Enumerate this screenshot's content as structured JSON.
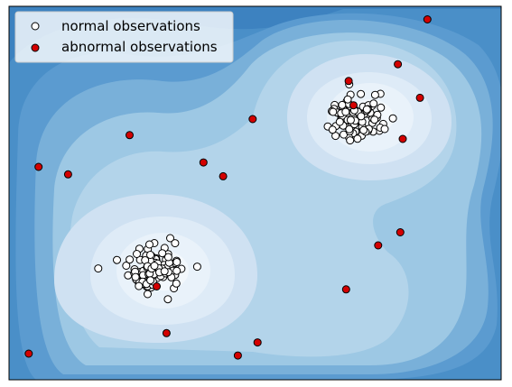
{
  "chart_data": {
    "type": "scatter",
    "title": "",
    "xlabel": "",
    "ylabel": "",
    "xlim": [
      -5,
      5
    ],
    "ylim": [
      -5,
      5
    ],
    "axes_ticks_visible": false,
    "grid": false,
    "background": "filled contour of outlier score (Blues colormap)",
    "legend": {
      "placement": "top-left",
      "entries": [
        {
          "label": "normal observations",
          "marker_fill": "#ffffff",
          "marker_edge": "#000000"
        },
        {
          "label": "abnormal observations",
          "marker_fill": "#d40000",
          "marker_edge": "#000000"
        }
      ]
    },
    "clusters": [
      {
        "center": [
          -2.0,
          -2.0
        ],
        "count": 100,
        "spread": 0.3
      },
      {
        "center": [
          2.0,
          2.0
        ],
        "count": 100,
        "spread": 0.3
      }
    ],
    "series": [
      {
        "name": "abnormal observations",
        "color": "#d40000",
        "x": [
          -4.4,
          -3.8,
          -2.55,
          -1.05,
          -0.65,
          -0.05,
          0.05,
          -2.0,
          -1.8,
          -4.6,
          -0.35,
          1.85,
          2.95,
          2.5,
          3.5,
          3.35,
          3.0,
          1.9,
          2.0,
          2.9
        ],
        "y": [
          0.7,
          0.5,
          1.55,
          0.82,
          0.45,
          1.98,
          -4.0,
          -2.5,
          -3.75,
          -4.3,
          -4.35,
          -2.58,
          -1.05,
          -1.4,
          4.65,
          2.55,
          1.45,
          3.0,
          2.35,
          3.45
        ]
      }
    ]
  }
}
